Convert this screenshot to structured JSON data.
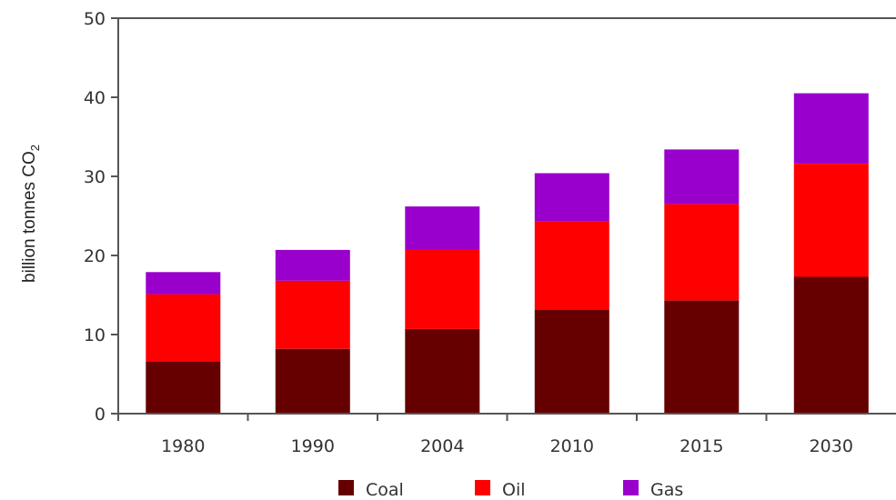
{
  "chart_data": {
    "type": "bar",
    "stacked": true,
    "categories": [
      "1980",
      "1990",
      "2004",
      "2010",
      "2015",
      "2030"
    ],
    "series": [
      {
        "name": "Coal",
        "color": "#660000",
        "values": [
          6.6,
          8.2,
          10.7,
          13.1,
          14.3,
          17.3
        ]
      },
      {
        "name": "Oil",
        "color": "#ff0000",
        "values": [
          8.5,
          8.6,
          10.1,
          11.2,
          12.2,
          14.3
        ]
      },
      {
        "name": "Gas",
        "color": "#9900cc",
        "values": [
          2.8,
          3.9,
          5.4,
          6.1,
          6.9,
          8.9
        ]
      }
    ],
    "ylabel": "billion tonnes CO",
    "ylabel_subscript": "2",
    "ylim": [
      0,
      50
    ],
    "yticks": [
      0,
      10,
      20,
      30,
      40,
      50
    ],
    "grid": false,
    "legend_position": "bottom"
  }
}
